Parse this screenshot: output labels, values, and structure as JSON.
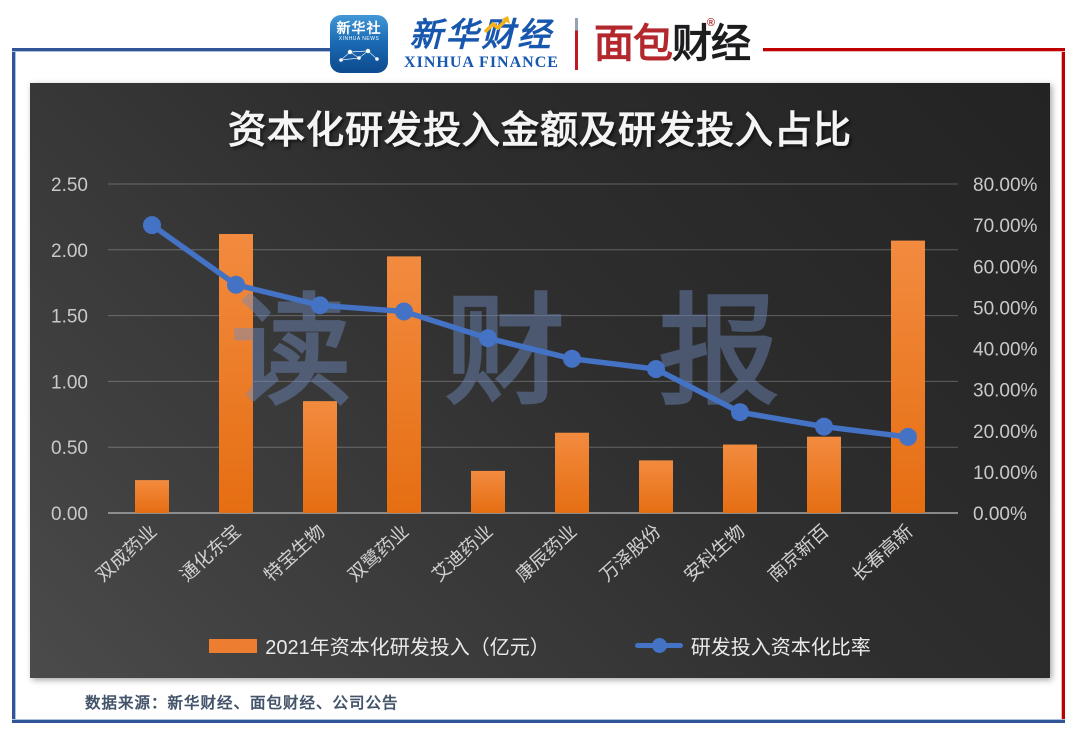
{
  "header": {
    "xinhua_icon": {
      "line1": "新华社",
      "line2": "XINHUA NEWS"
    },
    "xinhua_finance": {
      "cn": "新华财经",
      "en": "XINHUA FINANCE"
    },
    "mianbao": {
      "part1": "面包",
      "part2": "财经",
      "reg": "®"
    }
  },
  "chart_data": {
    "type": "bar+line",
    "title": "资本化研发投入金额及研发投入占比",
    "categories": [
      "双成药业",
      "通化东宝",
      "特宝生物",
      "双鹭药业",
      "艾迪药业",
      "康辰药业",
      "万泽股份",
      "安科生物",
      "南京新百",
      "长春高新"
    ],
    "series": [
      {
        "name": "2021年资本化研发投入（亿元）",
        "type": "bar",
        "axis": "left",
        "color": "#ED7D31",
        "values": [
          0.25,
          2.12,
          0.85,
          1.95,
          0.32,
          0.61,
          0.4,
          0.52,
          0.58,
          2.07
        ]
      },
      {
        "name": "研发投入资本化比率",
        "type": "line",
        "axis": "right",
        "color": "#4472C4",
        "values": [
          70.0,
          55.5,
          50.5,
          49.0,
          42.5,
          37.5,
          35.0,
          24.5,
          21.0,
          18.5
        ]
      }
    ],
    "left_axis": {
      "min": 0,
      "max": 2.5,
      "ticks": [
        "2.50",
        "2.00",
        "1.50",
        "1.00",
        "0.50",
        "0.00"
      ]
    },
    "right_axis": {
      "min": 0,
      "max": 80,
      "ticks": [
        "80.00%",
        "70.00%",
        "60.00%",
        "50.00%",
        "40.00%",
        "30.00%",
        "20.00%",
        "10.00%",
        "0.00%"
      ]
    },
    "grid": true,
    "legend_position": "bottom",
    "watermark": "读 财 报"
  },
  "footer": {
    "source": "数据来源：新华财经、面包财经、公司公告"
  },
  "colors": {
    "bar_orange": "#ED7D31",
    "line_blue": "#4472C4",
    "frame_blue": "#2f5597",
    "frame_red": "#c00000",
    "panel_dark": "#2e2e2e",
    "watermark_blue": "#6F8CC0"
  }
}
